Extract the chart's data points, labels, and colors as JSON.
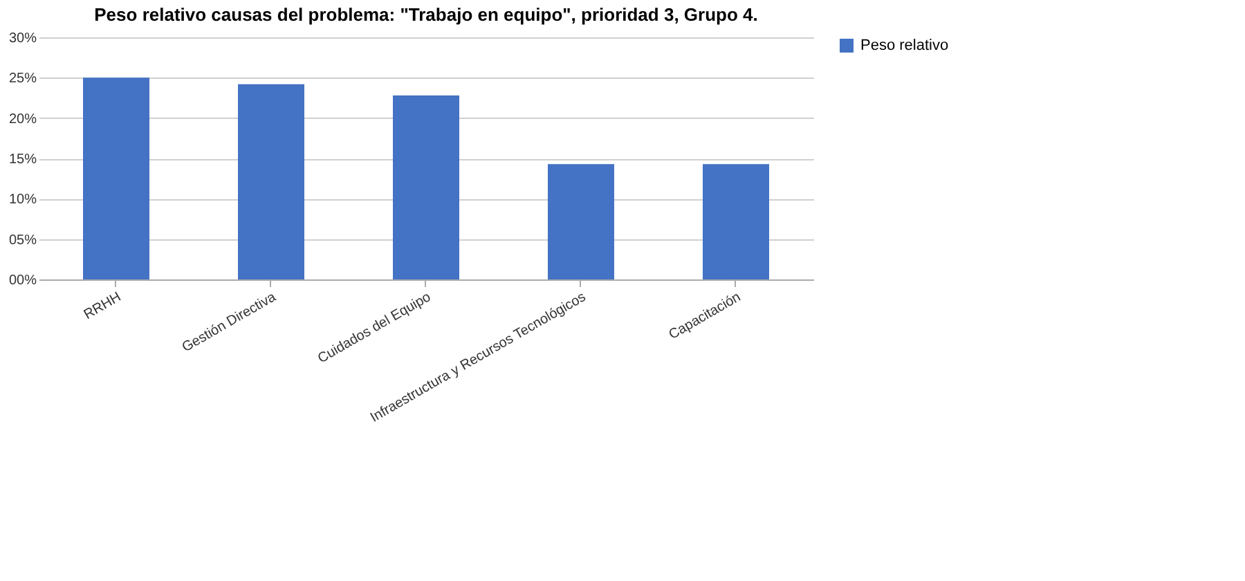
{
  "chart_data": {
    "type": "bar",
    "title": "Peso relativo causas  del problema: \"Trabajo  en equipo\", prioridad 3, Grupo 4.",
    "categories": [
      "RRHH",
      "Gestión Directiva",
      "Cuidados del Equipo",
      "Infraestructura y Recursos Tecnológicos",
      "Capacitación"
    ],
    "series": [
      {
        "name": "Peso relativo",
        "color": "#4472c4",
        "values": [
          25,
          24.2,
          22.8,
          14.3,
          14.3
        ]
      }
    ],
    "ylim": [
      0,
      30
    ],
    "yticks": [
      {
        "value": 0,
        "label": "00%"
      },
      {
        "value": 5,
        "label": "05%"
      },
      {
        "value": 10,
        "label": "10%"
      },
      {
        "value": 15,
        "label": "15%"
      },
      {
        "value": 20,
        "label": "20%"
      },
      {
        "value": 25,
        "label": "25%"
      },
      {
        "value": 30,
        "label": "30%"
      }
    ],
    "grid": "y",
    "legend": "right"
  }
}
